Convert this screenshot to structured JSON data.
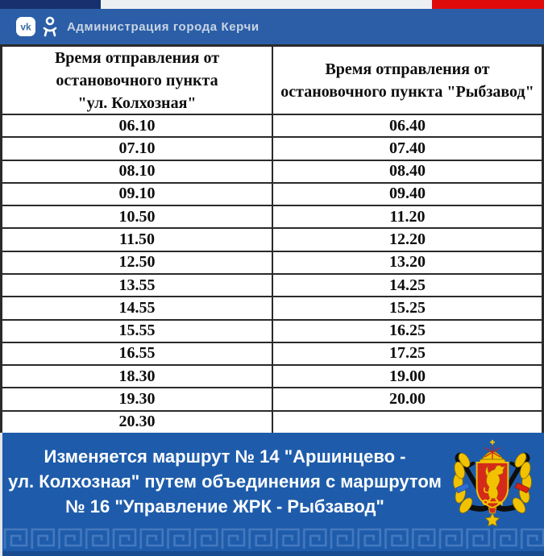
{
  "topbar": {
    "title": "Администрация города Керчи",
    "vk_label": "vk",
    "icons": [
      "vk-icon",
      "ok-icon"
    ]
  },
  "table": {
    "headers": [
      {
        "lines": [
          "Время отправления от",
          "остановочного пункта",
          "\"ул. Колхозная\""
        ]
      },
      {
        "lines": [
          "Время отправления от",
          "остановочного пункта \"Рыбзавод\""
        ]
      }
    ],
    "rows": [
      [
        "06.10",
        "06.40"
      ],
      [
        "07.10",
        "07.40"
      ],
      [
        "08.10",
        "08.40"
      ],
      [
        "09.10",
        "09.40"
      ],
      [
        "10.50",
        "11.20"
      ],
      [
        "11.50",
        "12.20"
      ],
      [
        "12.50",
        "13.20"
      ],
      [
        "13.55",
        "14.25"
      ],
      [
        "14.55",
        "15.25"
      ],
      [
        "15.55",
        "16.25"
      ],
      [
        "16.55",
        "17.25"
      ],
      [
        "18.30",
        "19.00"
      ],
      [
        "19.30",
        "20.00"
      ],
      [
        "20.30",
        ""
      ]
    ]
  },
  "banner": {
    "lines": [
      "Изменяется маршрут № 14 \"Аршинцево -",
      "ул. Колхозная\" путем объединения с маршрутом",
      "№ 16 \"Управление ЖРК - Рыбзавод\""
    ],
    "emblem": "kerch-coat-of-arms"
  },
  "colors": {
    "topbar_blue": "#2b5ea7",
    "banner_blue": "#1e5cab",
    "flag_navy": "#17316e",
    "flag_white": "#edf0f2",
    "flag_red": "#df0a0a",
    "meander_blue": "#4478bd",
    "bottom_strip_blue": "#174a8f",
    "table_border": "#2a2a2a",
    "shield_red": "#d52a1a",
    "emblem_gold": "#f2c200"
  }
}
